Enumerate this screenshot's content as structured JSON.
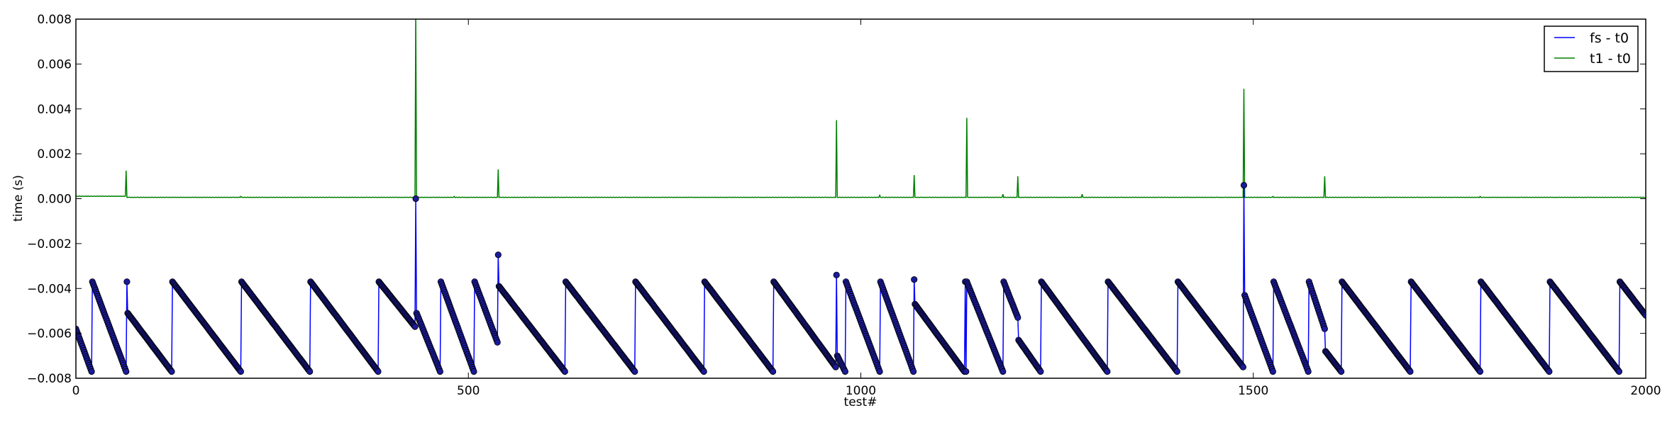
{
  "chart_data": {
    "type": "line",
    "title": "",
    "xlabel": "test#",
    "ylabel": "time (s)",
    "xlim": [
      0,
      2000
    ],
    "ylim": [
      -0.008,
      0.008
    ],
    "xticks": [
      0,
      500,
      1000,
      1500,
      2000
    ],
    "xtick_labels": [
      "0",
      "500",
      "1000",
      "1500",
      "2000"
    ],
    "yticks": [
      -0.008,
      -0.006,
      -0.004,
      -0.002,
      0.0,
      0.002,
      0.004,
      0.006,
      0.008
    ],
    "ytick_labels": [
      "−0.008",
      "−0.006",
      "−0.004",
      "−0.002",
      "0.000",
      "0.002",
      "0.004",
      "0.006",
      "0.008"
    ],
    "grid": false,
    "legend_position": "top-right",
    "series": [
      {
        "name": "fs - t0",
        "color": "#0000ff",
        "marker": "circle",
        "marker_edge": "#000000",
        "linear_runs": [
          [
            [
              0,
              -0.0058
            ],
            [
              20,
              -0.0077
            ]
          ],
          [
            [
              21,
              -0.0037
            ],
            [
              64,
              -0.0077
            ]
          ],
          [
            [
              65,
              -0.0037
            ]
          ],
          [
            [
              66,
              -0.0051
            ],
            [
              122,
              -0.0077
            ]
          ],
          [
            [
              123,
              -0.0037
            ],
            [
              210,
              -0.0077
            ]
          ],
          [
            [
              211,
              -0.0037
            ],
            [
              298,
              -0.0077
            ]
          ],
          [
            [
              299,
              -0.0037
            ],
            [
              385,
              -0.0077
            ]
          ],
          [
            [
              386,
              -0.0037
            ],
            [
              432,
              -0.0057
            ]
          ],
          [
            [
              433,
              0.0
            ]
          ],
          [
            [
              434,
              -0.0051
            ],
            [
              464,
              -0.0077
            ]
          ],
          [
            [
              465,
              -0.0037
            ],
            [
              507,
              -0.0077
            ]
          ],
          [
            [
              508,
              -0.0037
            ],
            [
              537,
              -0.0064
            ]
          ],
          [
            [
              538,
              -0.0025
            ]
          ],
          [
            [
              539,
              -0.0039
            ],
            [
              623,
              -0.0077
            ]
          ],
          [
            [
              624,
              -0.0037
            ],
            [
              712,
              -0.0077
            ]
          ],
          [
            [
              713,
              -0.0037
            ],
            [
              800,
              -0.0077
            ]
          ],
          [
            [
              801,
              -0.0037
            ],
            [
              888,
              -0.0077
            ]
          ],
          [
            [
              889,
              -0.0037
            ],
            [
              968,
              -0.0075
            ]
          ],
          [
            [
              969,
              -0.0034
            ]
          ],
          [
            [
              970,
              -0.007
            ],
            [
              980,
              -0.0077
            ]
          ],
          [
            [
              981,
              -0.0037
            ],
            [
              1024,
              -0.0077
            ]
          ],
          [
            [
              1025,
              -0.0037
            ],
            [
              1067,
              -0.0077
            ]
          ],
          [
            [
              1068,
              -0.0036
            ]
          ],
          [
            [
              1069,
              -0.0047
            ],
            [
              1132,
              -0.0077
            ]
          ],
          [
            [
              1133,
              -0.0037
            ]
          ],
          [
            [
              1134,
              -0.0077
            ]
          ],
          [
            [
              1135,
              -0.0037
            ],
            [
              1181,
              -0.0077
            ]
          ],
          [
            [
              1182,
              -0.0037
            ],
            [
              1200,
              -0.0053
            ]
          ],
          [
            [
              1201,
              -0.0063
            ],
            [
              1229,
              -0.0077
            ]
          ],
          [
            [
              1230,
              -0.0037
            ],
            [
              1314,
              -0.0077
            ]
          ],
          [
            [
              1315,
              -0.0037
            ],
            [
              1403,
              -0.0077
            ]
          ],
          [
            [
              1404,
              -0.0037
            ],
            [
              1487,
              -0.0075
            ]
          ],
          [
            [
              1488,
              0.0006
            ]
          ],
          [
            [
              1489,
              -0.0043
            ],
            [
              1525,
              -0.0077
            ]
          ],
          [
            [
              1526,
              -0.0037
            ],
            [
              1570,
              -0.0077
            ]
          ],
          [
            [
              1571,
              -0.0037
            ],
            [
              1591,
              -0.0058
            ]
          ],
          [
            [
              1592,
              -0.0068
            ],
            [
              1612,
              -0.0077
            ]
          ],
          [
            [
              1613,
              -0.0037
            ],
            [
              1700,
              -0.0077
            ]
          ],
          [
            [
              1701,
              -0.0037
            ],
            [
              1789,
              -0.0077
            ]
          ],
          [
            [
              1790,
              -0.0037
            ],
            [
              1877,
              -0.0077
            ]
          ],
          [
            [
              1878,
              -0.0037
            ],
            [
              1966,
              -0.0077
            ]
          ],
          [
            [
              1967,
              -0.0037
            ],
            [
              2000,
              -0.0052
            ]
          ]
        ]
      },
      {
        "name": "t1 - t0",
        "color": "#008000",
        "baseline": 6e-05,
        "spikes": [
          [
            64,
            0.00125
          ],
          [
            210,
            0.0001
          ],
          [
            433,
            0.0085
          ],
          [
            482,
            0.0001
          ],
          [
            538,
            0.0013
          ],
          [
            969,
            0.0035
          ],
          [
            1024,
            0.00015
          ],
          [
            1068,
            0.00105
          ],
          [
            1135,
            0.0036
          ],
          [
            1181,
            0.0002
          ],
          [
            1200,
            0.001
          ],
          [
            1282,
            0.0002
          ],
          [
            1488,
            0.0049
          ],
          [
            1525,
            0.0001
          ],
          [
            1591,
            0.001
          ],
          [
            1789,
            0.0001
          ]
        ]
      }
    ]
  }
}
